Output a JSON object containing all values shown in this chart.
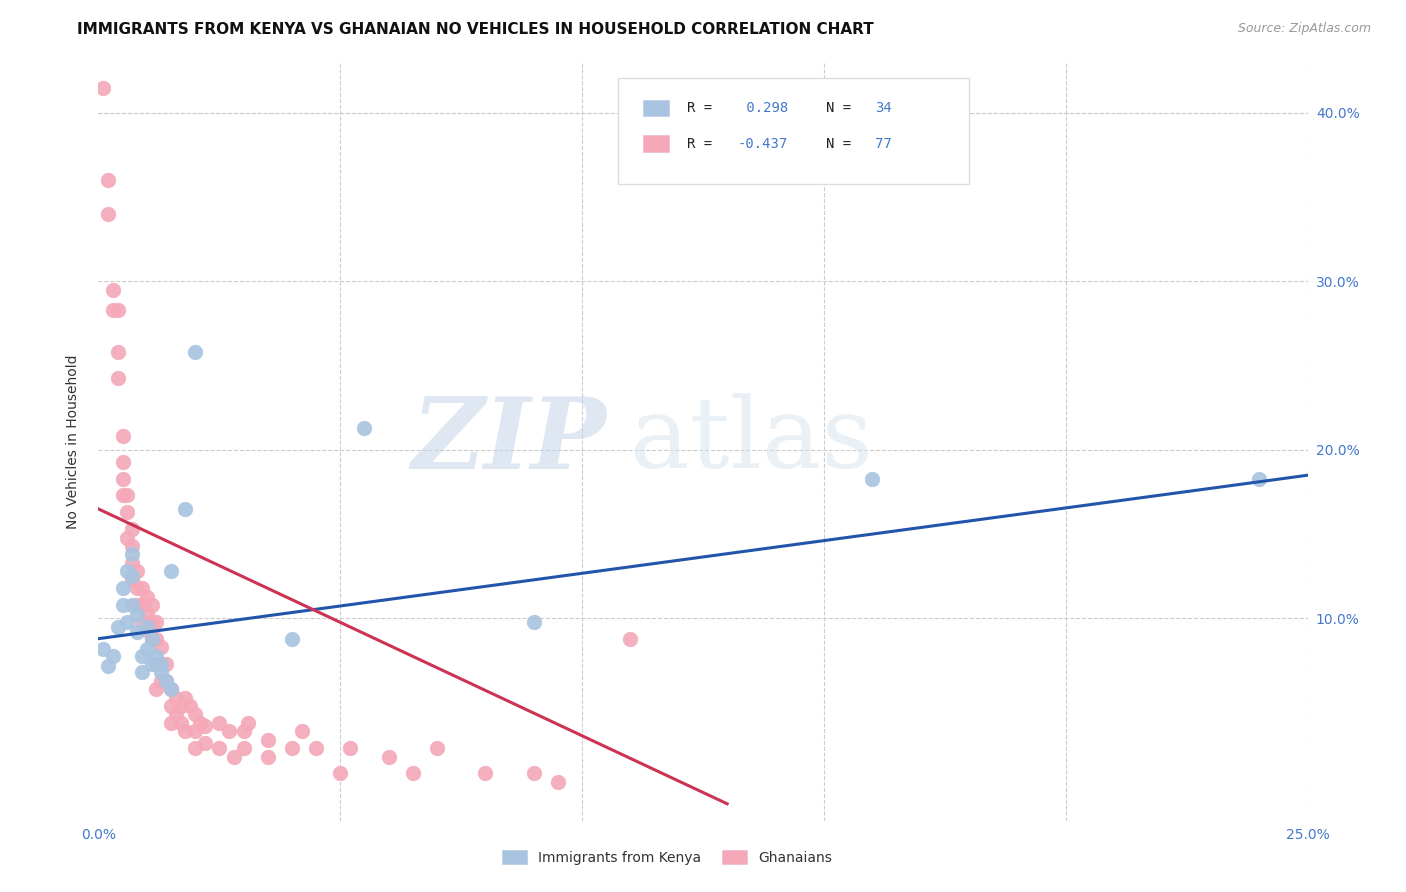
{
  "title": "IMMIGRANTS FROM KENYA VS GHANAIAN NO VEHICLES IN HOUSEHOLD CORRELATION CHART",
  "source": "Source: ZipAtlas.com",
  "ylabel": "No Vehicles in Household",
  "xlim": [
    0.0,
    0.25
  ],
  "ylim": [
    -0.02,
    0.43
  ],
  "blue_color": "#A8C4E0",
  "pink_color": "#F4A8B8",
  "blue_line_color": "#2255AA",
  "pink_line_color": "#CC3355",
  "legend_label1": "Immigrants from Kenya",
  "legend_label2": "Ghanaians",
  "watermark_zip": "ZIP",
  "watermark_atlas": "atlas",
  "tick_color": "#4477CC",
  "grid_color": "#CCCCCC",
  "blue_line_x0": 0.0,
  "blue_line_y0": 0.088,
  "blue_line_x1": 0.25,
  "blue_line_y1": 0.185,
  "pink_line_x0": 0.0,
  "pink_line_y0": 0.165,
  "pink_line_x1": 0.13,
  "pink_line_y1": -0.01,
  "blue_scatter_x": [
    0.001,
    0.002,
    0.003,
    0.004,
    0.005,
    0.005,
    0.006,
    0.006,
    0.007,
    0.007,
    0.007,
    0.008,
    0.008,
    0.009,
    0.009,
    0.01,
    0.01,
    0.011,
    0.011,
    0.012,
    0.013,
    0.013,
    0.014,
    0.015,
    0.015,
    0.018,
    0.02,
    0.04,
    0.055,
    0.09,
    0.16,
    0.24
  ],
  "blue_scatter_y": [
    0.082,
    0.072,
    0.078,
    0.095,
    0.108,
    0.118,
    0.098,
    0.128,
    0.125,
    0.108,
    0.138,
    0.102,
    0.092,
    0.078,
    0.068,
    0.082,
    0.095,
    0.073,
    0.088,
    0.078,
    0.073,
    0.068,
    0.063,
    0.058,
    0.128,
    0.165,
    0.258,
    0.088,
    0.213,
    0.098,
    0.183,
    0.183
  ],
  "pink_scatter_x": [
    0.001,
    0.002,
    0.002,
    0.003,
    0.003,
    0.004,
    0.004,
    0.004,
    0.005,
    0.005,
    0.005,
    0.005,
    0.006,
    0.006,
    0.006,
    0.007,
    0.007,
    0.007,
    0.007,
    0.008,
    0.008,
    0.008,
    0.009,
    0.009,
    0.009,
    0.01,
    0.01,
    0.01,
    0.011,
    0.011,
    0.011,
    0.012,
    0.012,
    0.012,
    0.012,
    0.013,
    0.013,
    0.013,
    0.014,
    0.014,
    0.015,
    0.015,
    0.015,
    0.016,
    0.016,
    0.017,
    0.017,
    0.018,
    0.018,
    0.019,
    0.02,
    0.02,
    0.02,
    0.021,
    0.022,
    0.022,
    0.025,
    0.025,
    0.027,
    0.028,
    0.03,
    0.03,
    0.031,
    0.035,
    0.035,
    0.04,
    0.042,
    0.045,
    0.05,
    0.052,
    0.06,
    0.065,
    0.07,
    0.08,
    0.09,
    0.095,
    0.11
  ],
  "pink_scatter_y": [
    0.415,
    0.36,
    0.34,
    0.295,
    0.283,
    0.283,
    0.258,
    0.243,
    0.208,
    0.193,
    0.183,
    0.173,
    0.173,
    0.163,
    0.148,
    0.153,
    0.143,
    0.133,
    0.123,
    0.128,
    0.118,
    0.108,
    0.118,
    0.108,
    0.098,
    0.113,
    0.103,
    0.093,
    0.108,
    0.098,
    0.088,
    0.098,
    0.088,
    0.073,
    0.058,
    0.083,
    0.073,
    0.063,
    0.073,
    0.063,
    0.058,
    0.048,
    0.038,
    0.053,
    0.043,
    0.048,
    0.038,
    0.053,
    0.033,
    0.048,
    0.043,
    0.033,
    0.023,
    0.038,
    0.036,
    0.026,
    0.038,
    0.023,
    0.033,
    0.018,
    0.033,
    0.023,
    0.038,
    0.028,
    0.018,
    0.023,
    0.033,
    0.023,
    0.008,
    0.023,
    0.018,
    0.008,
    0.023,
    0.008,
    0.008,
    0.003,
    0.088
  ]
}
